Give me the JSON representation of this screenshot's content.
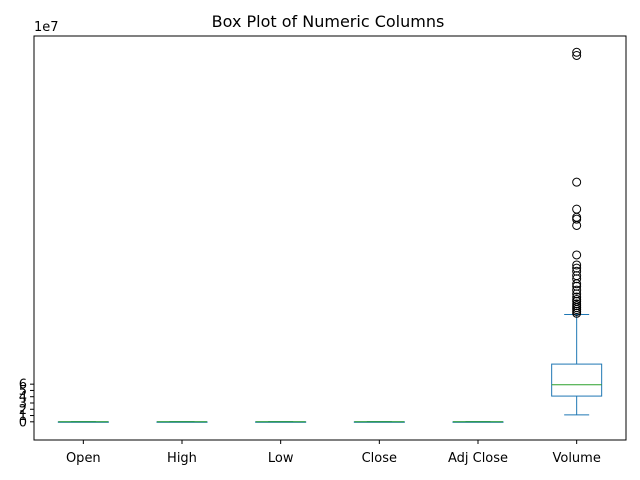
{
  "chart_data": {
    "type": "box",
    "title": "Box Plot of Numeric Columns",
    "xlabel": "",
    "ylabel": "",
    "y_offset_text": "1e7",
    "ylim": [
      -2.9,
      61.5
    ],
    "yticks": [
      0,
      1,
      2,
      3,
      4,
      5,
      6
    ],
    "categories": [
      "Open",
      "High",
      "Low",
      "Close",
      "Adj Close",
      "Volume"
    ],
    "grid": false,
    "colors": {
      "box": "#1f77b4",
      "median": "#2ca02c",
      "flier": "#000000"
    },
    "boxes": [
      {
        "name": "Open",
        "whisker_low": 0,
        "q1": 0,
        "median": 0,
        "q3": 0,
        "whisker_high": 0,
        "fliers": []
      },
      {
        "name": "High",
        "whisker_low": 0,
        "q1": 0,
        "median": 0,
        "q3": 0,
        "whisker_high": 0,
        "fliers": []
      },
      {
        "name": "Low",
        "whisker_low": 0,
        "q1": 0,
        "median": 0,
        "q3": 0,
        "whisker_high": 0,
        "fliers": []
      },
      {
        "name": "Close",
        "whisker_low": 0,
        "q1": 0,
        "median": 0,
        "q3": 0,
        "whisker_high": 0,
        "fliers": []
      },
      {
        "name": "Adj Close",
        "whisker_low": 0,
        "q1": 0,
        "median": 0,
        "q3": 0,
        "whisker_high": 0,
        "fliers": []
      },
      {
        "name": "Volume",
        "whisker_low": 1.1,
        "q1": 4.1,
        "median": 5.9,
        "q3": 9.2,
        "whisker_high": 17.1,
        "fliers": [
          58.9,
          58.4,
          38.2,
          33.9,
          32.6,
          32.3,
          31.3,
          26.6,
          25.0,
          24.5,
          24.0,
          23.3,
          22.8,
          22.0,
          21.6,
          21.0,
          20.4,
          19.9,
          19.5,
          19.2,
          18.8,
          18.5,
          18.2,
          17.9,
          17.6,
          17.3
        ]
      }
    ]
  }
}
